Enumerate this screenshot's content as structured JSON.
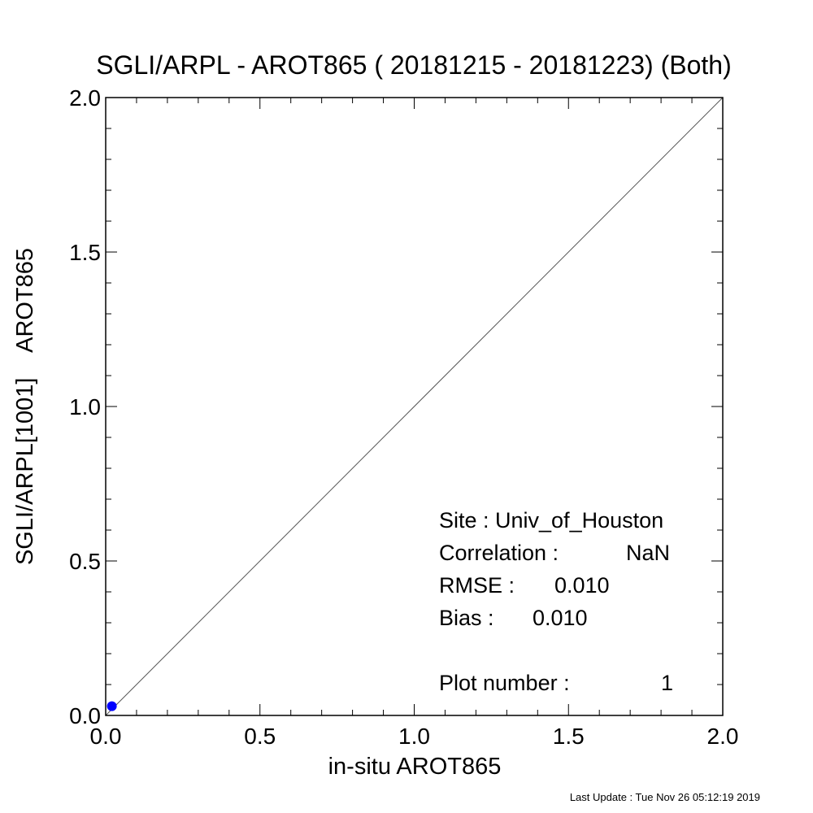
{
  "chart_data": {
    "type": "scatter",
    "title": "SGLI/ARPL - AROT865 ( 20181215 - 20181223) (Both)",
    "xlabel": "in-situ AROT865",
    "ylabel": "SGLI/ARPL[1001]    AROT865",
    "xlim": [
      0.0,
      2.0
    ],
    "ylim": [
      0.0,
      2.0
    ],
    "xticks": [
      "0.0",
      "0.5",
      "1.0",
      "1.5",
      "2.0"
    ],
    "yticks": [
      "0.0",
      "0.5",
      "1.0",
      "1.5",
      "2.0"
    ],
    "grid": false,
    "reference_line": "1:1",
    "series": [
      {
        "color": "#0000ff",
        "points": [
          {
            "x": 0.02,
            "y": 0.03
          }
        ]
      }
    ],
    "stats": {
      "site": "Site : Univ_of_Houston",
      "correlation_label": "Correlation :",
      "correlation_value": "NaN",
      "rmse_label": "RMSE :",
      "rmse_value": "0.010",
      "bias_label": "Bias :",
      "bias_value": "0.010",
      "plot_number_label": "Plot number :",
      "plot_number_value": "1"
    }
  },
  "footer": "Last Update : Tue Nov 26 05:12:19 2019"
}
